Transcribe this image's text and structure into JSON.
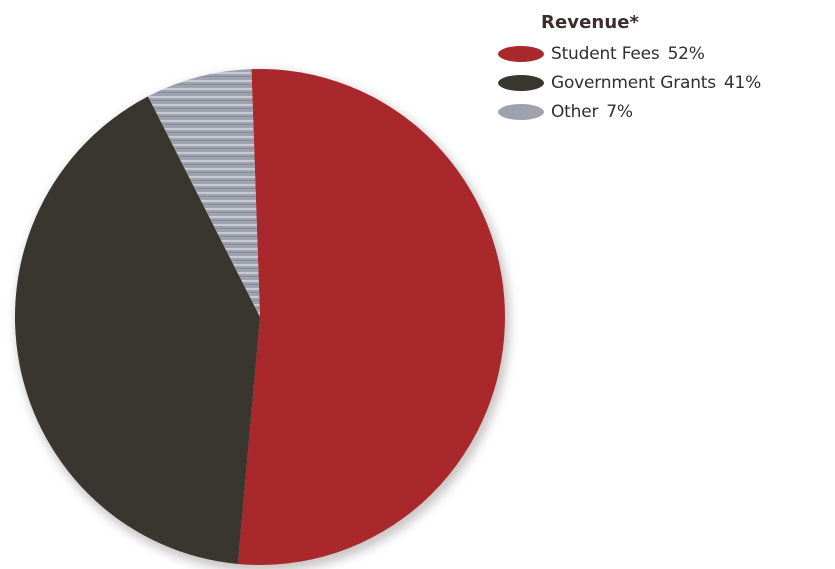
{
  "chart_data": {
    "type": "pie",
    "title": "Revenue*",
    "categories": [
      "Student Fees",
      "Government Grants",
      "Other"
    ],
    "values": [
      52,
      41,
      7
    ],
    "value_labels": [
      "52%",
      "41%",
      "7%"
    ],
    "colors": [
      "#a8282b",
      "#39352f",
      "#9ea1ae"
    ],
    "legend_position": "top-right",
    "grid": false
  }
}
